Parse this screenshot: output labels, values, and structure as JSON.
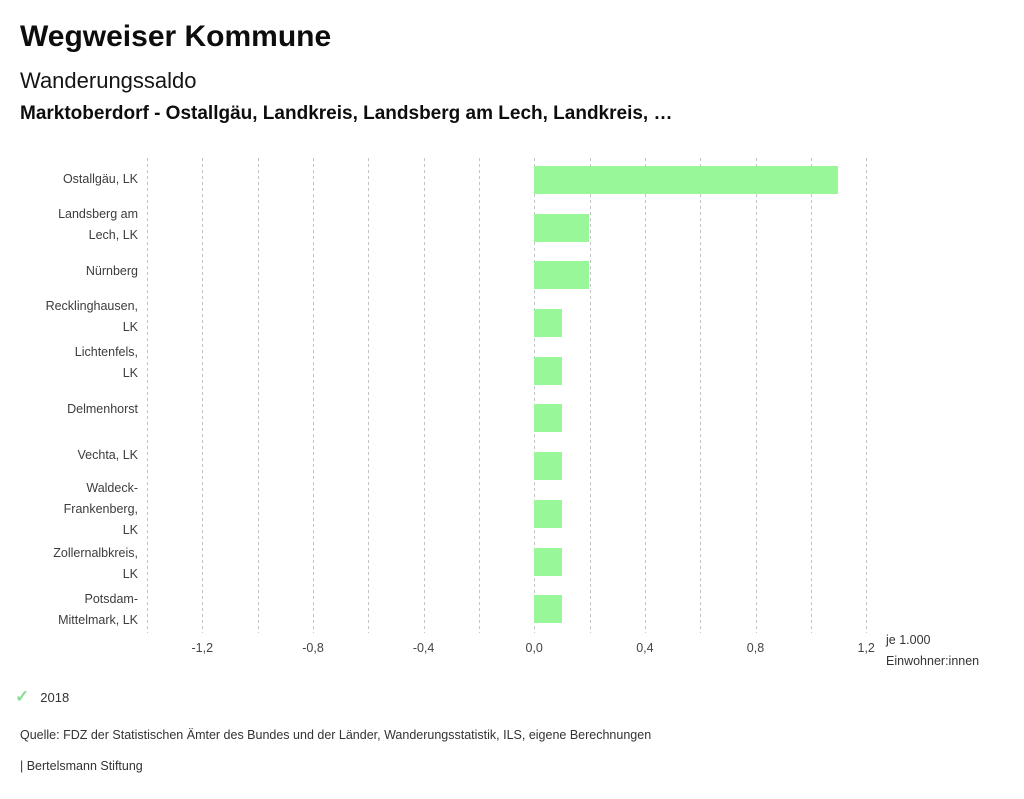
{
  "header": {
    "title": "Wegweiser Kommune",
    "subtitle": "Wanderungssaldo",
    "selection": "Marktoberdorf - Ostallgäu, Landkreis, Landsberg am Lech, Landkreis, …"
  },
  "chart_data": {
    "type": "bar",
    "orientation": "horizontal",
    "title": "Wanderungssaldo",
    "categories": [
      "Ostallgäu, LK",
      "Landsberg am Lech, LK",
      "Nürnberg",
      "Recklinghausen, LK",
      "Lichtenfels, LK",
      "Delmenhorst",
      "Vechta, LK",
      "Waldeck-Frankenberg, LK",
      "Zollernalbkreis, LK",
      "Potsdam-Mittelmark, LK"
    ],
    "label_lines": [
      [
        "Ostallgäu, LK"
      ],
      [
        "Landsberg am",
        "Lech, LK"
      ],
      [
        "Nürnberg"
      ],
      [
        "Recklinghausen,",
        "LK"
      ],
      [
        "Lichtenfels,",
        "LK"
      ],
      [
        "Delmenhorst"
      ],
      [
        "Vechta, LK"
      ],
      [
        "Waldeck-",
        "Frankenberg,",
        "LK"
      ],
      [
        "Zollernalbkreis,",
        "LK"
      ],
      [
        "Potsdam-",
        "Mittelmark, LK"
      ]
    ],
    "series": [
      {
        "name": "2018",
        "values": [
          1.1,
          0.2,
          0.2,
          0.1,
          0.1,
          0.1,
          0.1,
          0.1,
          0.1,
          0.1
        ]
      }
    ],
    "values": [
      1.1,
      0.2,
      0.2,
      0.1,
      0.1,
      0.1,
      0.1,
      0.1,
      0.1,
      0.1
    ],
    "xlabel": "je 1.000 Einwohner:innen",
    "xlim": [
      -1.4,
      1.25
    ],
    "grid_step": 0.2,
    "grid": true,
    "x_ticks": [
      {
        "value": -1.2,
        "label": "-1,2"
      },
      {
        "value": -0.8,
        "label": "-0,8"
      },
      {
        "value": -0.4,
        "label": "-0,4"
      },
      {
        "value": 0.0,
        "label": "0,0"
      },
      {
        "value": 0.4,
        "label": "0,4"
      },
      {
        "value": 0.8,
        "label": "0,8"
      },
      {
        "value": 1.2,
        "label": "1,2"
      }
    ],
    "bar_color": "#98f798",
    "legend_position": "bottom-left"
  },
  "legend": {
    "year": "2018",
    "check_color": "#86df94"
  },
  "footer": {
    "source": "Quelle: FDZ der Statistischen Ämter des Bundes und der Länder, Wanderungsstatistik, ILS, eigene Berechnungen",
    "brand": "| Bertelsmann Stiftung"
  }
}
